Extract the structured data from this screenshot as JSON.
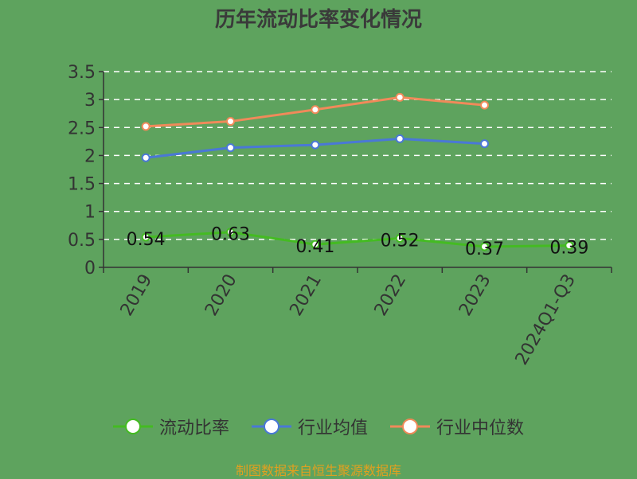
{
  "chart_data": {
    "type": "line",
    "title": "历年流动比率变化情况",
    "categories": [
      "2019",
      "2020",
      "2021",
      "2022",
      "2023",
      "2024Q1-Q3"
    ],
    "series": [
      {
        "name": "流动比率",
        "values": [
          0.54,
          0.63,
          0.41,
          0.52,
          0.37,
          0.39
        ],
        "color": "#44bb22"
      },
      {
        "name": "行业均值",
        "values": [
          1.96,
          2.14,
          2.19,
          2.3,
          2.21,
          null
        ],
        "color": "#4a78d6"
      },
      {
        "name": "行业中位数",
        "values": [
          2.52,
          2.61,
          2.82,
          3.04,
          2.9,
          null
        ],
        "color": "#f08a5a"
      }
    ],
    "data_labels": [
      "0.54",
      "0.63",
      "0.41",
      "0.52",
      "0.37",
      "0.39"
    ],
    "y_ticks": [
      "0",
      "0.5",
      "1",
      "1.5",
      "2",
      "2.5",
      "3",
      "3.5"
    ],
    "ylim": [
      0,
      3.5
    ],
    "xlabel": "",
    "ylabel": "",
    "grid": true,
    "legend_position": "bottom"
  },
  "source_note": "制图数据来自恒生聚源数据库"
}
